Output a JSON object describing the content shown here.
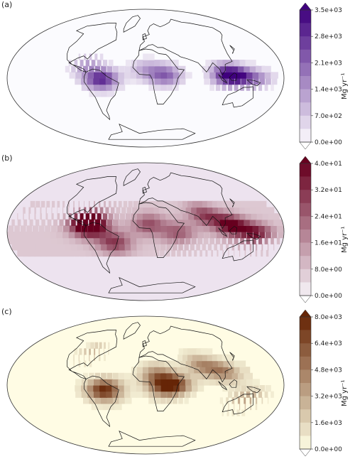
{
  "panels": [
    {
      "label": "(a)",
      "unit": "Mg yr⁻¹",
      "ticks": [
        "3.5e+03",
        "2.8e+03",
        "2.1e+03",
        "1.4e+03",
        "7.0e+02",
        "0.0e+00"
      ],
      "color_low": "#fcfbfd",
      "color_high": "#3f007d",
      "colormap": "Purples",
      "ocean_color": "#fbfbfe",
      "hotspots": [
        {
          "name": "amazon",
          "lon": -62,
          "lat": -5,
          "intensity": 0.85
        },
        {
          "name": "congo",
          "lon": 22,
          "lat": 0,
          "intensity": 0.6
        },
        {
          "name": "borneo",
          "lon": 114,
          "lat": 0,
          "intensity": 0.75
        },
        {
          "name": "sumatra",
          "lon": 102,
          "lat": 0,
          "intensity": 0.5
        },
        {
          "name": "new-guinea",
          "lon": 142,
          "lat": -5,
          "intensity": 0.4
        },
        {
          "name": "central-america",
          "lon": -85,
          "lat": 14,
          "intensity": 0.35
        },
        {
          "name": "west-africa",
          "lon": -5,
          "lat": 8,
          "intensity": 0.3
        }
      ]
    },
    {
      "label": "(b)",
      "unit": "Mg yr⁻¹",
      "ticks": [
        "4.0e+01",
        "3.2e+01",
        "2.4e+01",
        "1.6e+01",
        "8.0e+00",
        "0.0e+00"
      ],
      "color_low": "#f7f4f9",
      "color_high": "#67001f",
      "colormap": "PuRd",
      "ocean_color": "#ede3ef",
      "hotspots": [
        {
          "name": "central-america",
          "lon": -85,
          "lat": 12,
          "intensity": 0.8
        },
        {
          "name": "north-andes",
          "lon": -75,
          "lat": 3,
          "intensity": 0.9
        },
        {
          "name": "brazil-coast",
          "lon": -45,
          "lat": -18,
          "intensity": 0.6
        },
        {
          "name": "south-asia",
          "lon": 80,
          "lat": 18,
          "intensity": 0.55
        },
        {
          "name": "southeast-asia",
          "lon": 110,
          "lat": 5,
          "intensity": 0.85
        },
        {
          "name": "new-guinea",
          "lon": 140,
          "lat": -6,
          "intensity": 0.7
        },
        {
          "name": "west-africa",
          "lon": 0,
          "lat": 6,
          "intensity": 0.5
        },
        {
          "name": "east-africa",
          "lon": 38,
          "lat": -5,
          "intensity": 0.45
        }
      ]
    },
    {
      "label": "(c)",
      "unit": "Mg yr⁻¹",
      "ticks": [
        "8.0e+03",
        "6.4e+03",
        "4.8e+03",
        "3.2e+03",
        "1.6e+03",
        "0.0e+00"
      ],
      "color_low": "#ffffe5",
      "color_high": "#662506",
      "colormap": "YlOrBr",
      "ocean_color": "#fffce4",
      "hotspots": [
        {
          "name": "amazon",
          "lon": -58,
          "lat": -10,
          "intensity": 0.95
        },
        {
          "name": "central-africa",
          "lon": 22,
          "lat": -5,
          "intensity": 0.65
        },
        {
          "name": "sahel",
          "lon": 10,
          "lat": 10,
          "intensity": 0.45
        },
        {
          "name": "east-africa",
          "lon": 35,
          "lat": -2,
          "intensity": 0.55
        },
        {
          "name": "southeast-asia",
          "lon": 105,
          "lat": 15,
          "intensity": 0.5
        },
        {
          "name": "australia",
          "lon": 133,
          "lat": -22,
          "intensity": 0.4
        },
        {
          "name": "north-america",
          "lon": -95,
          "lat": 40,
          "intensity": 0.3
        },
        {
          "name": "india",
          "lon": 78,
          "lat": 22,
          "intensity": 0.45
        }
      ]
    }
  ]
}
